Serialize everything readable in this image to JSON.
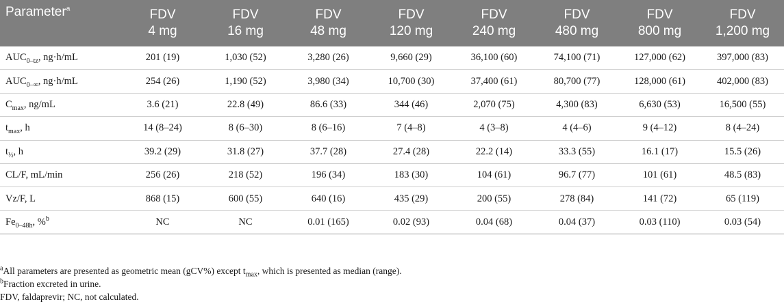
{
  "header": {
    "param_label": "Parameter",
    "param_sup": "a",
    "doses": [
      {
        "line1": "FDV",
        "line2": "4 mg"
      },
      {
        "line1": "FDV",
        "line2": "16 mg"
      },
      {
        "line1": "FDV",
        "line2": "48 mg"
      },
      {
        "line1": "FDV",
        "line2": "120 mg"
      },
      {
        "line1": "FDV",
        "line2": "240 mg"
      },
      {
        "line1": "FDV",
        "line2": "480 mg"
      },
      {
        "line1": "FDV",
        "line2": "800 mg"
      },
      {
        "line1": "FDV",
        "line2": "1,200 mg"
      }
    ]
  },
  "rows": [
    {
      "base": "AUC",
      "sub": "0–tz",
      "sup": "",
      "suffix": ", ng·h/mL",
      "values": [
        "201 (19)",
        "1,030 (52)",
        "3,280 (26)",
        "9,660 (29)",
        "36,100 (60)",
        "74,100 (71)",
        "127,000 (62)",
        "397,000 (83)"
      ]
    },
    {
      "base": "AUC",
      "sub": "0–∞",
      "sup": "",
      "suffix": ", ng·h/mL",
      "values": [
        "254 (26)",
        "1,190 (52)",
        "3,980 (34)",
        "10,700 (30)",
        "37,400 (61)",
        "80,700 (77)",
        "128,000 (61)",
        "402,000 (83)"
      ]
    },
    {
      "base": "C",
      "sub": "max",
      "sup": "",
      "suffix": ", ng/mL",
      "values": [
        "3.6 (21)",
        "22.8 (49)",
        "86.6 (33)",
        "344 (46)",
        "2,070 (75)",
        "4,300 (83)",
        "6,630 (53)",
        "16,500 (55)"
      ]
    },
    {
      "base": "t",
      "sub": "max",
      "sup": "",
      "suffix": ", h",
      "values": [
        "14 (8–24)",
        "8 (6–30)",
        "8 (6–16)",
        "7 (4–8)",
        "4 (3–8)",
        "4 (4–6)",
        "9 (4–12)",
        "8 (4–24)"
      ]
    },
    {
      "base": "t",
      "sub": "½",
      "sup": "",
      "suffix": ", h",
      "values": [
        "39.2 (29)",
        "31.8 (27)",
        "37.7 (28)",
        "27.4 (28)",
        "22.2 (14)",
        "33.3 (55)",
        "16.1 (17)",
        "15.5 (26)"
      ]
    },
    {
      "base": "CL/F, mL/min",
      "sub": "",
      "sup": "",
      "suffix": "",
      "values": [
        "256 (26)",
        "218 (52)",
        "196 (34)",
        "183 (30)",
        "104 (61)",
        "96.7 (77)",
        "101 (61)",
        "48.5 (83)"
      ]
    },
    {
      "base": "Vz/F, L",
      "sub": "",
      "sup": "",
      "suffix": "",
      "values": [
        "868 (15)",
        "600 (55)",
        "640 (16)",
        "435 (29)",
        "200 (55)",
        "278 (84)",
        "141 (72)",
        "65 (119)"
      ]
    },
    {
      "base": "Fe",
      "sub": "0–48h",
      "sup": "b",
      "suffix": ", %",
      "values": [
        "NC",
        "NC",
        "0.01 (165)",
        "0.02 (93)",
        "0.04 (68)",
        "0.04 (37)",
        "0.03 (110)",
        "0.03 (54)"
      ]
    }
  ],
  "notes": {
    "a_mark": "a",
    "a_text1": "All parameters are presented as geometric mean (gCV%) except t",
    "a_sub": "max",
    "a_text2": ", which is presented as median (range).",
    "b_mark": "b",
    "b_text": "Fraction excreted in urine.",
    "abbrev": "FDV, faldaprevir; NC, not calculated."
  }
}
